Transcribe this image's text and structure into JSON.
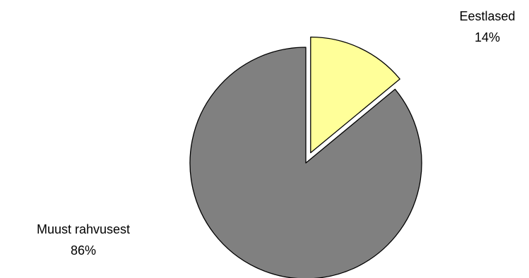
{
  "chart_data": {
    "type": "pie",
    "categories": [
      "Eestlased",
      "Muust rahvusest"
    ],
    "values": [
      14,
      86
    ],
    "value_labels": [
      "14%",
      "86%"
    ],
    "colors": [
      "#FFFF99",
      "#808080"
    ],
    "outline_color": "#000000",
    "exploded": [
      "Eestlased"
    ],
    "legend": "none"
  }
}
